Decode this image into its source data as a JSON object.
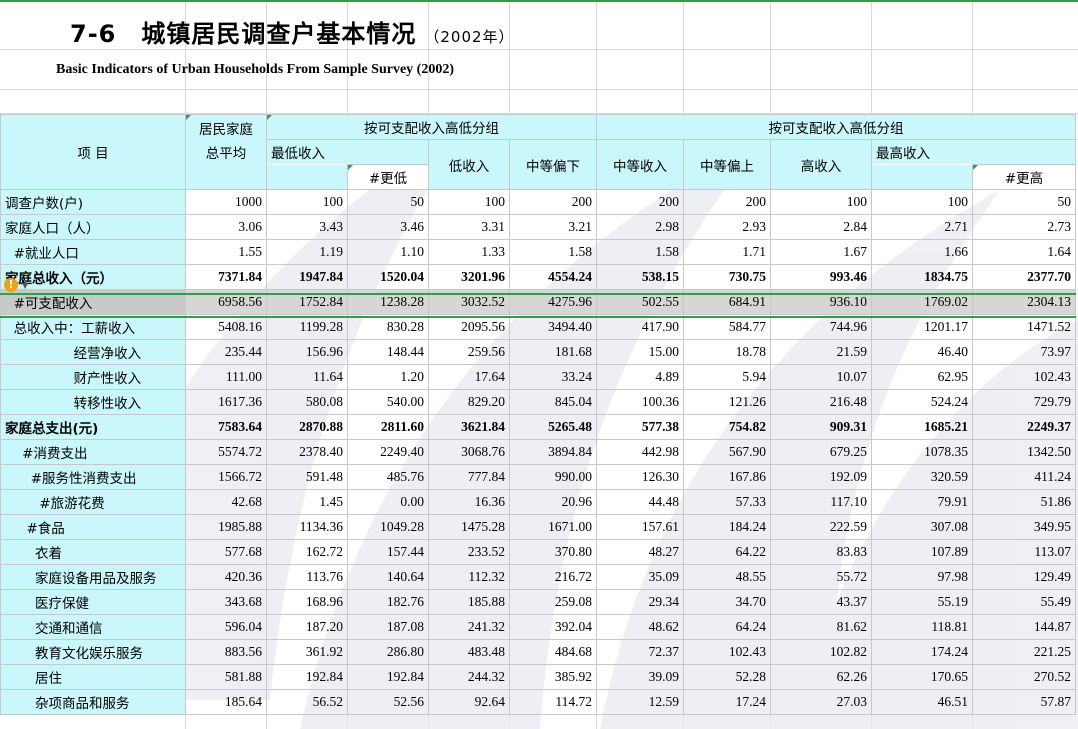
{
  "title": {
    "cn": "7-6　城镇居民调查户基本情况",
    "year": "（2002年）",
    "en": "Basic Indicators of Urban Households From Sample Survey (2002)"
  },
  "header": {
    "item": "项  目",
    "avg_top": "居民家庭",
    "avg_bottom": "总平均",
    "group_left": "按可支配收入高低分组",
    "group_right": "按可支配收入高低分组",
    "cols": {
      "lowest": "最低收入",
      "poorer": "#更低",
      "low": "低收入",
      "lower_mid": "中等偏下",
      "mid": "中等收入",
      "upper_mid": "中等偏上",
      "high": "高收入",
      "highest": "最高收入",
      "richer": "#更高"
    }
  },
  "rows": [
    {
      "label": "调查户数(户)",
      "v": [
        "1000",
        "100",
        "50",
        "100",
        "200",
        "200",
        "200",
        "100",
        "100",
        "50"
      ]
    },
    {
      "label": "家庭人口（人）",
      "v": [
        "3.06",
        "3.43",
        "3.46",
        "3.31",
        "3.21",
        "2.98",
        "2.93",
        "2.84",
        "2.71",
        "2.73"
      ]
    },
    {
      "label": "  #就业人口",
      "v": [
        "1.55",
        "1.19",
        "1.10",
        "1.33",
        "1.58",
        "1.58",
        "1.71",
        "1.67",
        "1.66",
        "1.64"
      ]
    },
    {
      "label": "家庭总收入（元）",
      "v": [
        "7371.84",
        "1947.84",
        "1520.04",
        "3201.96",
        "4554.24",
        "538.15",
        "730.75",
        "993.46",
        "1834.75",
        "2377.70"
      ]
    },
    {
      "label": "  #可支配收入",
      "v": [
        "6958.56",
        "1752.84",
        "1238.28",
        "3032.52",
        "4275.96",
        "502.55",
        "684.91",
        "936.10",
        "1769.02",
        "2304.13"
      ]
    },
    {
      "label": "  总收入中：工薪收入",
      "v": [
        "5408.16",
        "1199.28",
        "830.28",
        "2095.56",
        "3494.40",
        "417.90",
        "584.77",
        "744.96",
        "1201.17",
        "1471.52"
      ]
    },
    {
      "label": "                经营净收入",
      "v": [
        "235.44",
        "156.96",
        "148.44",
        "259.56",
        "181.68",
        "15.00",
        "18.78",
        "21.59",
        "46.40",
        "73.97"
      ]
    },
    {
      "label": "                财产性收入",
      "v": [
        "111.00",
        "11.64",
        "1.20",
        "17.64",
        "33.24",
        "4.89",
        "5.94",
        "10.07",
        "62.95",
        "102.43"
      ]
    },
    {
      "label": "                转移性收入",
      "v": [
        "1617.36",
        "580.08",
        "540.00",
        "829.20",
        "845.04",
        "100.36",
        "121.26",
        "216.48",
        "524.24",
        "729.79"
      ]
    },
    {
      "label": "家庭总支出(元)",
      "v": [
        "7583.64",
        "2870.88",
        "2811.60",
        "3621.84",
        "5265.48",
        "577.38",
        "754.82",
        "909.31",
        "1685.21",
        "2249.37"
      ]
    },
    {
      "label": "    #消费支出",
      "v": [
        "5574.72",
        "2378.40",
        "2249.40",
        "3068.76",
        "3894.84",
        "442.98",
        "567.90",
        "679.25",
        "1078.35",
        "1342.50"
      ]
    },
    {
      "label": "      #服务性消费支出",
      "v": [
        "1566.72",
        "591.48",
        "485.76",
        "777.84",
        "990.00",
        "126.30",
        "167.86",
        "192.09",
        "320.59",
        "411.24"
      ]
    },
    {
      "label": "        #旅游花费",
      "v": [
        "42.68",
        "1.45",
        "0.00",
        "16.36",
        "20.96",
        "44.48",
        "57.33",
        "117.10",
        "79.91",
        "51.86"
      ]
    },
    {
      "label": "     #食品",
      "v": [
        "1985.88",
        "1134.36",
        "1049.28",
        "1475.28",
        "1671.00",
        "157.61",
        "184.24",
        "222.59",
        "307.08",
        "349.95"
      ]
    },
    {
      "label": "       衣着",
      "v": [
        "577.68",
        "162.72",
        "157.44",
        "233.52",
        "370.80",
        "48.27",
        "64.22",
        "83.83",
        "107.89",
        "113.07"
      ]
    },
    {
      "label": "       家庭设备用品及服务",
      "v": [
        "420.36",
        "113.76",
        "140.64",
        "112.32",
        "216.72",
        "35.09",
        "48.55",
        "55.72",
        "97.98",
        "129.49"
      ]
    },
    {
      "label": "       医疗保健",
      "v": [
        "343.68",
        "168.96",
        "182.76",
        "185.88",
        "259.08",
        "29.34",
        "34.70",
        "43.37",
        "55.19",
        "55.49"
      ]
    },
    {
      "label": "       交通和通信",
      "v": [
        "596.04",
        "187.20",
        "187.08",
        "241.32",
        "392.04",
        "48.62",
        "64.24",
        "81.62",
        "118.81",
        "144.87"
      ]
    },
    {
      "label": "       教育文化娱乐服务",
      "v": [
        "883.56",
        "361.92",
        "286.80",
        "483.48",
        "484.68",
        "72.37",
        "102.43",
        "102.82",
        "174.24",
        "221.25"
      ]
    },
    {
      "label": "       居住",
      "v": [
        "581.88",
        "192.84",
        "192.84",
        "244.32",
        "385.92",
        "39.09",
        "52.28",
        "62.26",
        "170.65",
        "270.52"
      ]
    },
    {
      "label": "       杂项商品和服务",
      "v": [
        "185.64",
        "56.52",
        "52.56",
        "92.64",
        "114.72",
        "12.59",
        "17.24",
        "27.03",
        "46.51",
        "57.87"
      ]
    }
  ],
  "bold_rows": [
    3,
    9
  ],
  "selected_row": 4,
  "colors": {
    "label_bg": "#c9f7fb",
    "selection_border": "#2e9e4a",
    "grid": "#d9d9d9",
    "warning": "#f2a11a"
  },
  "icons": {
    "warning": "warning-icon",
    "caret": "dropdown-caret-icon"
  }
}
